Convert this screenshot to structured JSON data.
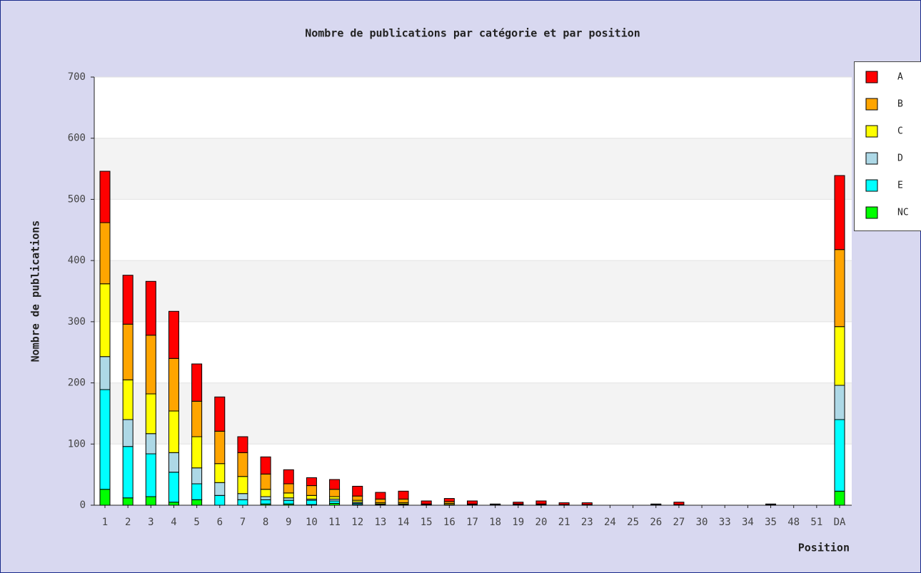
{
  "chart_data": {
    "type": "stacked_bar",
    "title": "Nombre de publications par catégorie et par position",
    "x_label": "Position",
    "y_label": "Nombre de publications",
    "categories": [
      "1",
      "2",
      "3",
      "4",
      "5",
      "6",
      "7",
      "8",
      "9",
      "10",
      "11",
      "12",
      "13",
      "14",
      "15",
      "16",
      "17",
      "18",
      "19",
      "20",
      "21",
      "23",
      "24",
      "25",
      "26",
      "27",
      "30",
      "33",
      "34",
      "35",
      "48",
      "51",
      "DA"
    ],
    "series": [
      {
        "name": "A",
        "color": "#ff0000",
        "values": [
          84,
          80,
          88,
          77,
          61,
          56,
          26,
          28,
          23,
          13,
          16,
          16,
          11,
          13,
          5,
          5,
          5,
          1,
          3,
          5,
          3,
          3,
          0,
          0,
          1,
          4,
          0,
          0,
          0,
          1,
          0,
          0,
          121
        ]
      },
      {
        "name": "B",
        "color": "#ffa500",
        "values": [
          100,
          91,
          96,
          86,
          58,
          53,
          39,
          25,
          15,
          16,
          12,
          7,
          6,
          6,
          1,
          3,
          1,
          1,
          1,
          1,
          1,
          1,
          0,
          0,
          1,
          1,
          0,
          0,
          0,
          1,
          0,
          0,
          126
        ]
      },
      {
        "name": "C",
        "color": "#ffff00",
        "values": [
          119,
          65,
          65,
          68,
          51,
          31,
          28,
          12,
          8,
          6,
          4,
          3,
          2,
          2,
          1,
          2,
          1,
          0,
          1,
          1,
          0,
          0,
          0,
          0,
          0,
          0,
          0,
          0,
          0,
          0,
          0,
          0,
          96
        ]
      },
      {
        "name": "D",
        "color": "#add8e6",
        "values": [
          54,
          44,
          33,
          32,
          26,
          21,
          10,
          5,
          4,
          2,
          3,
          2,
          1,
          1,
          0,
          0,
          0,
          0,
          0,
          0,
          0,
          0,
          0,
          0,
          0,
          0,
          0,
          0,
          0,
          0,
          0,
          0,
          56
        ]
      },
      {
        "name": "E",
        "color": "#00ffff",
        "values": [
          163,
          84,
          70,
          49,
          26,
          16,
          9,
          7,
          6,
          7,
          4,
          2,
          1,
          1,
          0,
          1,
          0,
          0,
          0,
          0,
          0,
          0,
          0,
          0,
          0,
          0,
          0,
          0,
          0,
          0,
          0,
          0,
          117
        ]
      },
      {
        "name": "NC",
        "color": "#00ff00",
        "values": [
          26,
          12,
          14,
          5,
          9,
          0,
          0,
          2,
          2,
          1,
          3,
          1,
          0,
          0,
          0,
          0,
          0,
          0,
          0,
          0,
          0,
          0,
          0,
          0,
          0,
          0,
          0,
          0,
          0,
          0,
          0,
          0,
          23
        ]
      }
    ],
    "ylim": [
      0,
      700
    ],
    "yticks": [
      0,
      100,
      200,
      300,
      400,
      500,
      600,
      700
    ],
    "grid": true,
    "legend": "top-right"
  }
}
